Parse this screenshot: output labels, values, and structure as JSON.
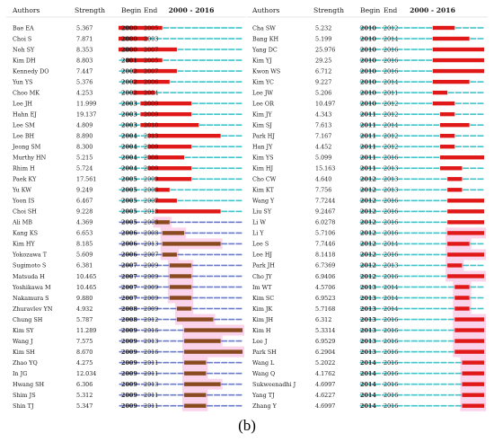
{
  "caption": "(b)",
  "chart_data": [
    {
      "type": "table",
      "columns": [
        "Authors",
        "Strength",
        "Begin",
        "End",
        "2000 - 2016"
      ],
      "year_range": [
        2000,
        2016
      ],
      "rows": [
        {
          "author": "Bae EA",
          "strength": "5.367",
          "begin": "2000",
          "end": "2005"
        },
        {
          "author": "Choi S",
          "strength": "7.871",
          "begin": "2000",
          "end": "2003"
        },
        {
          "author": "Noh SY",
          "strength": "8.353",
          "begin": "2000",
          "end": "2007"
        },
        {
          "author": "Kim DH",
          "strength": "8.803",
          "begin": "2001",
          "end": "2005"
        },
        {
          "author": "Kennedy DO",
          "strength": "7.447",
          "begin": "2002",
          "end": "2007"
        },
        {
          "author": "Yun YS",
          "strength": "5.376",
          "begin": "2002",
          "end": "2006"
        },
        {
          "author": "Choo MK",
          "strength": "4.253",
          "begin": "2002",
          "end": "2004"
        },
        {
          "author": "Lee JH",
          "strength": "11.999",
          "begin": "2003",
          "end": "2009"
        },
        {
          "author": "Hahn EJ",
          "strength": "19.137",
          "begin": "2003",
          "end": "2009"
        },
        {
          "author": "Lee SM",
          "strength": "4.809",
          "begin": "2003",
          "end": "2010"
        },
        {
          "author": "Lee BH",
          "strength": "8.890",
          "begin": "2004",
          "end": "2013"
        },
        {
          "author": "Jeong SM",
          "strength": "8.300",
          "begin": "2004",
          "end": "2009"
        },
        {
          "author": "Murthy HN",
          "strength": "5.215",
          "begin": "2004",
          "end": "2008"
        },
        {
          "author": "Rhim H",
          "strength": "5.724",
          "begin": "2004",
          "end": "2009"
        },
        {
          "author": "Paek KY",
          "strength": "17.561",
          "begin": "2005",
          "end": "2009"
        },
        {
          "author": "Yu KW",
          "strength": "9.249",
          "begin": "2005",
          "end": "2006"
        },
        {
          "author": "Yoon IS",
          "strength": "6.467",
          "begin": "2005",
          "end": "2007"
        },
        {
          "author": "Choi SH",
          "strength": "9.228",
          "begin": "2005",
          "end": "2013"
        },
        {
          "author": "Ali MB",
          "strength": "4.369",
          "begin": "2005",
          "end": "2006"
        },
        {
          "author": "Kang KS",
          "strength": "6.653",
          "begin": "2006",
          "end": "2008"
        },
        {
          "author": "Kim HY",
          "strength": "8.185",
          "begin": "2006",
          "end": "2013"
        },
        {
          "author": "Yokozawa T",
          "strength": "5.609",
          "begin": "2006",
          "end": "2007"
        },
        {
          "author": "Sugimoto S",
          "strength": "6.381",
          "begin": "2007",
          "end": "2009"
        },
        {
          "author": "Matsuda H",
          "strength": "10.465",
          "begin": "2007",
          "end": "2009"
        },
        {
          "author": "Yoshikawa M",
          "strength": "10.465",
          "begin": "2007",
          "end": "2009"
        },
        {
          "author": "Nakamura S",
          "strength": "9.880",
          "begin": "2007",
          "end": "2009"
        },
        {
          "author": "Zhuravlev YN",
          "strength": "4.932",
          "begin": "2008",
          "end": "2009"
        },
        {
          "author": "Chung SH",
          "strength": "5.787",
          "begin": "2008",
          "end": "2012"
        },
        {
          "author": "Kim SY",
          "strength": "11.289",
          "begin": "2009",
          "end": "2016"
        },
        {
          "author": "Wang J",
          "strength": "7.575",
          "begin": "2009",
          "end": "2013"
        },
        {
          "author": "Kim SH",
          "strength": "8.670",
          "begin": "2009",
          "end": "2016"
        },
        {
          "author": "Zhao YQ",
          "strength": "4.275",
          "begin": "2009",
          "end": "2011"
        },
        {
          "author": "In JG",
          "strength": "12.034",
          "begin": "2009",
          "end": "2011"
        },
        {
          "author": "Hwang SH",
          "strength": "6.306",
          "begin": "2009",
          "end": "2013"
        },
        {
          "author": "Shim JS",
          "strength": "5.312",
          "begin": "2009",
          "end": "2011"
        },
        {
          "author": "Shin TJ",
          "strength": "5.347",
          "begin": "2009",
          "end": "2011"
        }
      ]
    },
    {
      "type": "table",
      "columns": [
        "Authors",
        "Strength",
        "Begin",
        "End",
        "2000 - 2016"
      ],
      "year_range": [
        2000,
        2016
      ],
      "rows": [
        {
          "author": "Cha SW",
          "strength": "5.232",
          "begin": "2010",
          "end": "2012"
        },
        {
          "author": "Bang KH",
          "strength": "5.199",
          "begin": "2010",
          "end": "2014"
        },
        {
          "author": "Yang DC",
          "strength": "25.976",
          "begin": "2010",
          "end": "2016"
        },
        {
          "author": "Kim YJ",
          "strength": "29.25",
          "begin": "2010",
          "end": "2016"
        },
        {
          "author": "Kwon WS",
          "strength": "6.712",
          "begin": "2010",
          "end": "2016"
        },
        {
          "author": "Kim YC",
          "strength": "9.227",
          "begin": "2010",
          "end": "2014"
        },
        {
          "author": "Lee JW",
          "strength": "5.206",
          "begin": "2010",
          "end": "2011"
        },
        {
          "author": "Lee OR",
          "strength": "10.497",
          "begin": "2010",
          "end": "2012"
        },
        {
          "author": "Kim JY",
          "strength": "4.343",
          "begin": "2011",
          "end": "2012"
        },
        {
          "author": "Kim SJ",
          "strength": "7.613",
          "begin": "2011",
          "end": "2014"
        },
        {
          "author": "Park HJ",
          "strength": "7.167",
          "begin": "2011",
          "end": "2012"
        },
        {
          "author": "Han JY",
          "strength": "4.452",
          "begin": "2011",
          "end": "2012"
        },
        {
          "author": "Kim YS",
          "strength": "5.099",
          "begin": "2011",
          "end": "2016"
        },
        {
          "author": "Kim HJ",
          "strength": "15.163",
          "begin": "2011",
          "end": "2013"
        },
        {
          "author": "Cho CW",
          "strength": "4.640",
          "begin": "2012",
          "end": "2013"
        },
        {
          "author": "Kim KT",
          "strength": "7.756",
          "begin": "2012",
          "end": "2013"
        },
        {
          "author": "Wang Y",
          "strength": "7.7244",
          "begin": "2012",
          "end": "2016"
        },
        {
          "author": "Liu SY",
          "strength": "9.2467",
          "begin": "2012",
          "end": "2016"
        },
        {
          "author": "Li W",
          "strength": "6.0278",
          "begin": "2012",
          "end": "2016"
        },
        {
          "author": "Li Y",
          "strength": "5.7106",
          "begin": "2012",
          "end": "2016"
        },
        {
          "author": "Lee S",
          "strength": "7.7446",
          "begin": "2012",
          "end": "2014"
        },
        {
          "author": "Lee HJ",
          "strength": "8.1418",
          "begin": "2012",
          "end": "2016"
        },
        {
          "author": "Park JH",
          "strength": "6.7369",
          "begin": "2012",
          "end": "2013"
        },
        {
          "author": "Cho JY",
          "strength": "6.9406",
          "begin": "2012",
          "end": "2016"
        },
        {
          "author": "Im WT",
          "strength": "4.5706",
          "begin": "2013",
          "end": "2014"
        },
        {
          "author": "Kim SC",
          "strength": "6.9523",
          "begin": "2013",
          "end": "2014"
        },
        {
          "author": "Kim JK",
          "strength": "5.7168",
          "begin": "2013",
          "end": "2014"
        },
        {
          "author": "Kim JH",
          "strength": "6.312",
          "begin": "2013",
          "end": "2016"
        },
        {
          "author": "Kim H",
          "strength": "5.3314",
          "begin": "2013",
          "end": "2016"
        },
        {
          "author": "Lee J",
          "strength": "6.9529",
          "begin": "2013",
          "end": "2016"
        },
        {
          "author": "Park SH",
          "strength": "6.2904",
          "begin": "2013",
          "end": "2016"
        },
        {
          "author": "Wang L",
          "strength": "5.2022",
          "begin": "2014",
          "end": "2016"
        },
        {
          "author": "Wang Q",
          "strength": "4.1762",
          "begin": "2014",
          "end": "2016"
        },
        {
          "author": "Sukweenadhi J",
          "strength": "4.6997",
          "begin": "2014",
          "end": "2016"
        },
        {
          "author": "Yang TJ",
          "strength": "4.6227",
          "begin": "2014",
          "end": "2016"
        },
        {
          "author": "Zhang Y",
          "strength": "4.6997",
          "begin": "2014",
          "end": "2016"
        }
      ]
    }
  ],
  "colors": {
    "baseline": "#3ec4c8",
    "burst_primary": "#e01818",
    "burst_secondary": "#8a4a1f",
    "highlight_band": "#f8b8e0",
    "baseline_secondary": "#6a78c8"
  }
}
